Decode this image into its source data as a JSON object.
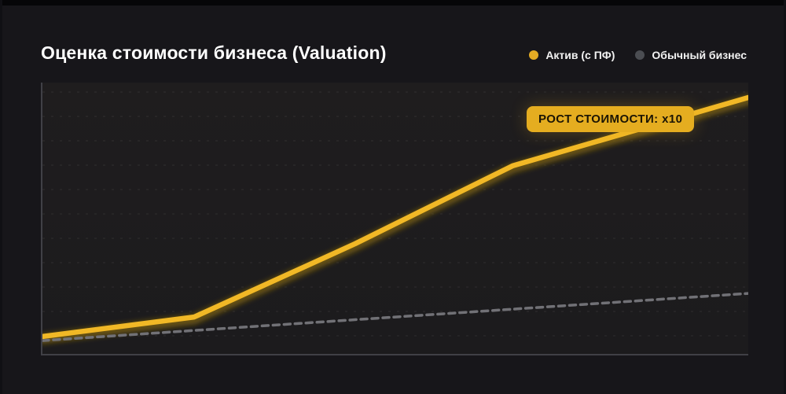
{
  "header": {
    "title": "Оценка стоимости бизнеса (Valuation)"
  },
  "legend": {
    "items": [
      {
        "label": "Актив (с ПФ)",
        "color": "#E2AA24"
      },
      {
        "label": "Обычный бизнес",
        "color": "#4B4D52"
      }
    ]
  },
  "annotation": {
    "text": "РОСТ СТОИМОСТИ: x10"
  },
  "colors": {
    "page_background": "#17161A",
    "plot_background": "#1E1C1E",
    "axis": "#404046",
    "accent_yellow": "#F1B826",
    "line_glow": "#7D6410",
    "dashed_gray": "#717176",
    "badge_background": "#E5AD20",
    "badge_text": "#1C1504",
    "title_text": "#FFFFFF"
  },
  "chart_data": {
    "type": "line",
    "title": "Оценка стоимости бизнеса (Valuation)",
    "xlabel": "",
    "ylabel": "",
    "tick_labels_visible": false,
    "grid": "faint dotted horizontal lines",
    "legend_position": "top-right, outside plot",
    "axes": {
      "left_spine": true,
      "bottom_spine": true,
      "x_range": [
        0,
        1
      ],
      "y_range": [
        0,
        1
      ]
    },
    "annotation": {
      "text": "РОСТ СТОИМОСТИ: x10",
      "growth_multiplier": 10,
      "attached_to": "Актив (с ПФ)"
    },
    "series": [
      {
        "name": "Актив (с ПФ)",
        "style": "solid",
        "color": "#F1B826",
        "width": 6.5,
        "glow": true,
        "points": [
          [
            0.0,
            0.064
          ],
          [
            0.215,
            0.136
          ],
          [
            0.443,
            0.406
          ],
          [
            0.666,
            0.693
          ],
          [
            1.0,
            0.945
          ]
        ]
      },
      {
        "name": "Обычный бизнес",
        "style": "dashed",
        "color": "#717176",
        "width": 3.5,
        "glow": false,
        "points": [
          [
            0.0,
            0.049
          ],
          [
            1.0,
            0.223
          ]
        ]
      }
    ]
  }
}
